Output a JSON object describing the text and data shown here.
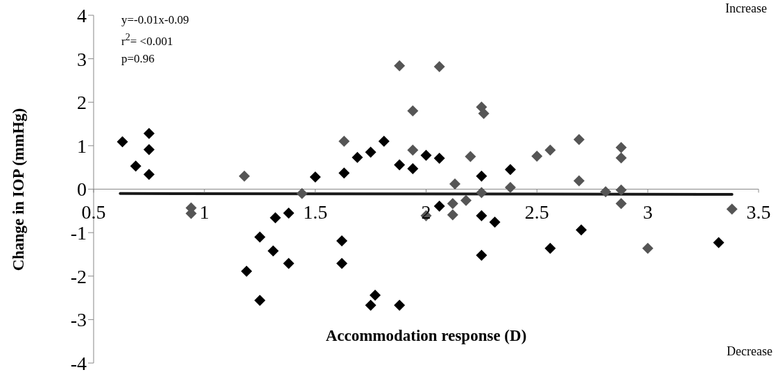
{
  "chart_data": {
    "type": "scatter",
    "xlabel": "Accommodation response (D)",
    "ylabel": "Change in IOP (mmHg)",
    "annotations": [
      "y=-0.01x-0.09",
      "r$^{2}$= <0.001",
      "p=0.96",
      "Increase",
      "Decrease"
    ],
    "xlim": [
      0.5,
      3.5
    ],
    "xticks": [
      0.5,
      1,
      1.5,
      2,
      2.5,
      3,
      3.5
    ],
    "ylim": [
      -4,
      4
    ],
    "yticks": [
      -4,
      -3,
      -2,
      -1,
      0,
      1,
      2,
      3,
      4
    ],
    "marker": "diamond",
    "series": [
      {
        "color": "#000000",
        "x": [
          0.63,
          0.69,
          0.75,
          0.75,
          0.75,
          1.19,
          1.25,
          1.25,
          1.32,
          1.31,
          1.38,
          1.38,
          1.5,
          1.63,
          1.62,
          1.62,
          1.69,
          1.75,
          1.81,
          1.77,
          1.75,
          1.88,
          1.88,
          1.94,
          2.0,
          2.06,
          2.06,
          2.25,
          2.25,
          2.25,
          2.31,
          2.38,
          2.56,
          2.7,
          3.32
        ],
        "values": [
          1.09,
          0.53,
          1.28,
          0.91,
          0.34,
          -1.89,
          -1.1,
          -2.56,
          -0.66,
          -1.42,
          -0.55,
          -1.71,
          0.28,
          0.37,
          -1.19,
          -1.71,
          0.73,
          0.85,
          1.1,
          -2.44,
          -2.67,
          -2.67,
          0.56,
          0.47,
          0.78,
          0.71,
          -0.39,
          0.3,
          -0.61,
          -1.52,
          -0.76,
          0.45,
          -1.36,
          -0.94,
          -1.23
        ]
      },
      {
        "color": "#555555",
        "x": [
          0.94,
          0.94,
          1.18,
          1.44,
          1.63,
          1.88,
          1.94,
          1.94,
          2.0,
          2.06,
          2.12,
          2.12,
          2.13,
          2.18,
          2.2,
          2.25,
          2.26,
          2.25,
          2.38,
          2.5,
          2.56,
          2.69,
          2.69,
          2.81,
          2.88,
          2.88,
          2.88,
          2.88,
          3.0,
          3.38
        ],
        "values": [
          -0.43,
          -0.56,
          0.3,
          -0.1,
          1.1,
          2.84,
          1.8,
          0.9,
          -0.61,
          2.82,
          -0.33,
          -0.59,
          0.12,
          -0.26,
          0.75,
          1.89,
          1.74,
          -0.08,
          0.04,
          0.76,
          0.9,
          1.14,
          0.19,
          -0.06,
          0.96,
          0.72,
          -0.02,
          -0.33,
          -1.36,
          -0.46
        ]
      },
      {
        "type": "line",
        "color": "#1a1a1a",
        "marker": "none",
        "x": [
          0.62,
          3.38
        ],
        "values": [
          -0.1,
          -0.12
        ]
      }
    ]
  }
}
